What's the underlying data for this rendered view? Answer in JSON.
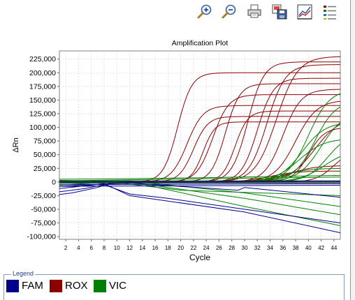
{
  "toolbar": {
    "buttons": [
      {
        "name": "zoom-in-button",
        "icon": "zoom-in-icon"
      },
      {
        "name": "zoom-out-button",
        "icon": "zoom-out-icon"
      },
      {
        "name": "print-button",
        "icon": "printer-icon"
      },
      {
        "name": "save-image-button",
        "icon": "save-image-icon"
      },
      {
        "name": "plot-settings-button",
        "icon": "line-chart-icon"
      },
      {
        "name": "show-legend-button",
        "icon": "legend-list-icon"
      }
    ]
  },
  "legend": {
    "caption": "Legend",
    "items": [
      {
        "label": "FAM",
        "color": "#00008b"
      },
      {
        "label": "ROX",
        "color": "#8b0000"
      },
      {
        "label": "VIC",
        "color": "#008000"
      }
    ]
  },
  "chart_data": {
    "type": "line",
    "title": "Amplification Plot",
    "xlabel": "Cycle",
    "ylabel": "ΔRn",
    "xlim": [
      1,
      45
    ],
    "ylim": [
      -105000,
      240000
    ],
    "xticks": [
      2,
      4,
      6,
      8,
      10,
      12,
      14,
      16,
      18,
      20,
      22,
      24,
      26,
      28,
      30,
      32,
      34,
      36,
      38,
      40,
      42,
      44
    ],
    "yticks": [
      -100000,
      -75000,
      -50000,
      -25000,
      0,
      25000,
      50000,
      75000,
      100000,
      125000,
      150000,
      175000,
      200000,
      225000
    ],
    "ytick_labels": [
      "-100,000",
      "-75,000",
      "-50,000",
      "-25,000",
      "0",
      "25,000",
      "50,000",
      "75,000",
      "100,000",
      "125,000",
      "150,000",
      "175,000",
      "200,000",
      "225,000"
    ],
    "grid": true,
    "legend_position": "bottom",
    "colors": {
      "FAM": "#00008b",
      "ROX": "#8b0000",
      "VIC": "#008000"
    },
    "series": [
      {
        "dye": "ROX",
        "model": "sigmoid",
        "plateau": 200000,
        "midpoint": 19.5,
        "slope": 0.9
      },
      {
        "dye": "ROX",
        "model": "sigmoid",
        "plateau": 140000,
        "midpoint": 21,
        "slope": 0.8
      },
      {
        "dye": "ROX",
        "model": "sigmoid",
        "plateau": 120000,
        "midpoint": 22,
        "slope": 0.9
      },
      {
        "dye": "ROX",
        "model": "sigmoid",
        "plateau": 110000,
        "midpoint": 23.5,
        "slope": 1.1
      },
      {
        "dye": "ROX",
        "model": "sigmoid",
        "plateau": 160000,
        "midpoint": 25,
        "slope": 0.8
      },
      {
        "dye": "ROX",
        "model": "sigmoid",
        "plateau": 180000,
        "midpoint": 27,
        "slope": 0.9
      },
      {
        "dye": "ROX",
        "model": "sigmoid",
        "plateau": 130000,
        "midpoint": 28.5,
        "slope": 1.0
      },
      {
        "dye": "ROX",
        "model": "sigmoid",
        "plateau": 220000,
        "midpoint": 30.5,
        "slope": 0.8
      },
      {
        "dye": "ROX",
        "model": "sigmoid",
        "plateau": 190000,
        "midpoint": 32,
        "slope": 0.8
      },
      {
        "dye": "ROX",
        "model": "sigmoid",
        "plateau": 215000,
        "midpoint": 33.5,
        "slope": 0.7
      },
      {
        "dye": "ROX",
        "model": "sigmoid",
        "plateau": 230000,
        "midpoint": 35,
        "slope": 0.6
      },
      {
        "dye": "ROX",
        "model": "sigmoid",
        "plateau": 170000,
        "midpoint": 36,
        "slope": 0.7
      },
      {
        "dye": "ROX",
        "model": "sigmoid",
        "plateau": 150000,
        "midpoint": 38,
        "slope": 0.6
      },
      {
        "dye": "ROX",
        "model": "sigmoid",
        "plateau": 120000,
        "midpoint": 41,
        "slope": 0.5
      },
      {
        "dye": "ROX",
        "model": "sigmoid",
        "plateau": 100000,
        "midpoint": 40,
        "slope": 0.8
      },
      {
        "dye": "ROX",
        "model": "sigmoid",
        "plateau": 60000,
        "midpoint": 44,
        "slope": 0.7
      },
      {
        "dye": "ROX",
        "model": "sigmoid",
        "plateau": 30000,
        "midpoint": 37,
        "slope": 0.5
      },
      {
        "dye": "ROX",
        "model": "sigmoid",
        "plateau": 20000,
        "midpoint": 34,
        "slope": 0.5
      },
      {
        "dye": "VIC",
        "model": "sigmoid",
        "plateau": 170000,
        "midpoint": 40,
        "slope": 0.6
      },
      {
        "dye": "VIC",
        "model": "sigmoid",
        "plateau": 150000,
        "midpoint": 41,
        "slope": 0.6
      },
      {
        "dye": "VIC",
        "model": "sigmoid",
        "plateau": 130000,
        "midpoint": 42,
        "slope": 0.55
      },
      {
        "dye": "VIC",
        "model": "sigmoid",
        "plateau": 110000,
        "midpoint": 39,
        "slope": 0.55
      },
      {
        "dye": "VIC",
        "model": "sigmoid",
        "plateau": 90000,
        "midpoint": 43,
        "slope": 0.6
      },
      {
        "dye": "VIC",
        "model": "sigmoid",
        "plateau": 80000,
        "midpoint": 38.5,
        "slope": 0.5
      },
      {
        "dye": "VIC",
        "model": "sigmoid",
        "plateau": 60000,
        "midpoint": 42.5,
        "slope": 0.5
      },
      {
        "dye": "VIC",
        "model": "sigmoid",
        "plateau": 25000,
        "midpoint": 36,
        "slope": 0.5
      },
      {
        "dye": "VIC",
        "model": "baseline",
        "points": [
          [
            1,
            5000
          ],
          [
            12,
            6000
          ],
          [
            24,
            8000
          ],
          [
            45,
            12000
          ]
        ]
      },
      {
        "dye": "VIC",
        "model": "baseline",
        "points": [
          [
            1,
            2000
          ],
          [
            12,
            4000
          ],
          [
            24,
            6000
          ],
          [
            45,
            9000
          ]
        ]
      },
      {
        "dye": "VIC",
        "model": "baseline",
        "points": [
          [
            1,
            -2000
          ],
          [
            12,
            2000
          ],
          [
            30,
            -20000
          ],
          [
            45,
            -45000
          ]
        ]
      },
      {
        "dye": "VIC",
        "model": "baseline",
        "points": [
          [
            1,
            0
          ],
          [
            12,
            0
          ],
          [
            30,
            -30000
          ],
          [
            45,
            -60000
          ]
        ]
      },
      {
        "dye": "VIC",
        "model": "baseline",
        "points": [
          [
            1,
            3000
          ],
          [
            12,
            1000
          ],
          [
            30,
            -45000
          ],
          [
            45,
            -80000
          ]
        ]
      },
      {
        "dye": "VIC",
        "model": "baseline",
        "points": [
          [
            1,
            -6000
          ],
          [
            9,
            0
          ],
          [
            20,
            -15000
          ],
          [
            45,
            -25000
          ]
        ]
      },
      {
        "dye": "FAM",
        "model": "baseline",
        "points": [
          [
            1,
            -2000
          ],
          [
            45,
            0
          ]
        ]
      },
      {
        "dye": "FAM",
        "model": "baseline",
        "points": [
          [
            1,
            -5000
          ],
          [
            45,
            -3000
          ]
        ]
      },
      {
        "dye": "FAM",
        "model": "baseline",
        "points": [
          [
            1,
            1000
          ],
          [
            45,
            2000
          ]
        ]
      },
      {
        "dye": "FAM",
        "model": "baseline",
        "points": [
          [
            1,
            -8000
          ],
          [
            45,
            -6000
          ]
        ]
      },
      {
        "dye": "FAM",
        "model": "baseline",
        "points": [
          [
            1,
            -23000
          ],
          [
            3,
            -20000
          ],
          [
            7,
            -10000
          ],
          [
            9,
            -2000
          ],
          [
            12,
            0
          ],
          [
            45,
            0
          ]
        ]
      },
      {
        "dye": "FAM",
        "model": "baseline",
        "points": [
          [
            1,
            -18000
          ],
          [
            5,
            -12000
          ],
          [
            8,
            -5000
          ],
          [
            12,
            -22000
          ],
          [
            18,
            -30000
          ],
          [
            45,
            -75000
          ]
        ]
      },
      {
        "dye": "FAM",
        "model": "baseline",
        "points": [
          [
            1,
            -12000
          ],
          [
            6,
            -6000
          ],
          [
            8,
            -3000
          ],
          [
            12,
            -25000
          ],
          [
            30,
            -55000
          ],
          [
            45,
            -93000
          ]
        ]
      },
      {
        "dye": "FAM",
        "model": "baseline",
        "points": [
          [
            1,
            -8000
          ],
          [
            8,
            -4000
          ],
          [
            12,
            -2000
          ],
          [
            29,
            -15000
          ],
          [
            30,
            -10000
          ],
          [
            45,
            -28000
          ]
        ]
      }
    ]
  }
}
